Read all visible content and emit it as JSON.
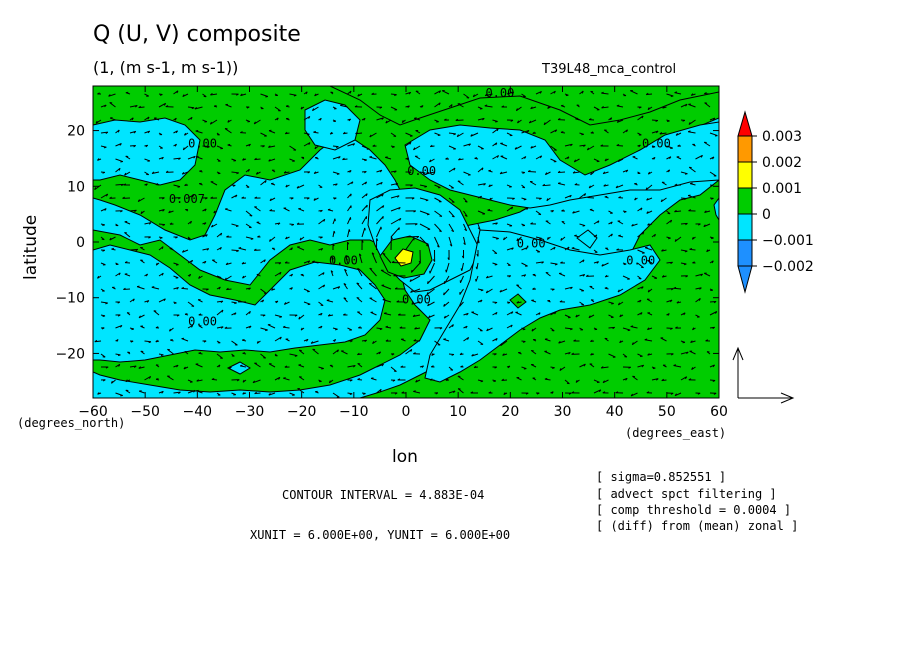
{
  "header": {
    "title": "Q (U, V) composite",
    "subtitle": "(1, (m s-1, m s-1))",
    "run_name": "T39L48_mca_control"
  },
  "axes": {
    "xlabel": "lon",
    "ylabel": "latitude",
    "x_unit_note": "(degrees_east)",
    "y_unit_note": "(degrees_north)"
  },
  "footer": {
    "contour_interval": "CONTOUR INTERVAL = 4.883E-04",
    "units": "XUNIT = 6.000E+00, YUNIT = 6.000E+00",
    "notes": [
      "[ sigma=0.852551 ]",
      "[ advect spct filtering ]",
      "[ comp threshold = 0.0004 ]",
      "[ (diff) from (mean) zonal ]"
    ]
  },
  "colorbar": {
    "labels": [
      "0.003",
      "0.002",
      "0.001",
      "0",
      "−0.001",
      "−0.002"
    ],
    "colors": [
      "#ff0000",
      "#ff9900",
      "#ffff00",
      "#00cc00",
      "#00e5ff",
      "#1e90ff"
    ]
  },
  "chart_data": {
    "type": "heatmap",
    "title": "Q (U, V) composite",
    "subtitle": "(1, (m s-1, m s-1))",
    "xlabel": "lon",
    "ylabel": "latitude",
    "xlim": [
      -60,
      60
    ],
    "ylim": [
      -28,
      28
    ],
    "x_ticks": [
      -60,
      -50,
      -40,
      -30,
      -20,
      -10,
      0,
      10,
      20,
      30,
      40,
      50,
      60
    ],
    "y_ticks": [
      -20,
      -10,
      0,
      10,
      20
    ],
    "x_tick_labels": [
      "−60",
      "−50",
      "−40",
      "−30",
      "−20",
      "−10",
      "0",
      "10",
      "20",
      "30",
      "40",
      "50",
      "60"
    ],
    "y_tick_labels": [
      "−20",
      "−10",
      "0",
      "10",
      "20"
    ],
    "contour_interval": 0.0004883,
    "colorbar_levels": [
      0.003,
      0.002,
      0.001,
      0,
      -0.001,
      -0.002
    ],
    "contour_labels": [
      {
        "text": "0.00",
        "x": 18,
        "y": 26
      },
      {
        "text": "0.00",
        "x": -39,
        "y": 17
      },
      {
        "text": "0.00",
        "x": 48,
        "y": 17
      },
      {
        "text": "0.00",
        "x": 3,
        "y": 12
      },
      {
        "text": "0.007",
        "x": -42,
        "y": 7
      },
      {
        "text": "0.00",
        "x": 24,
        "y": -1
      },
      {
        "text": "0.00",
        "x": -12,
        "y": -4
      },
      {
        "text": "0.00",
        "x": 45,
        "y": -4
      },
      {
        "text": "0.00",
        "x": 2,
        "y": -11
      },
      {
        "text": "0.00",
        "x": -39,
        "y": -15
      }
    ],
    "vector_reference": "arrow key (XUNIT = 6.000E+00, YUNIT = 6.000E+00)"
  }
}
